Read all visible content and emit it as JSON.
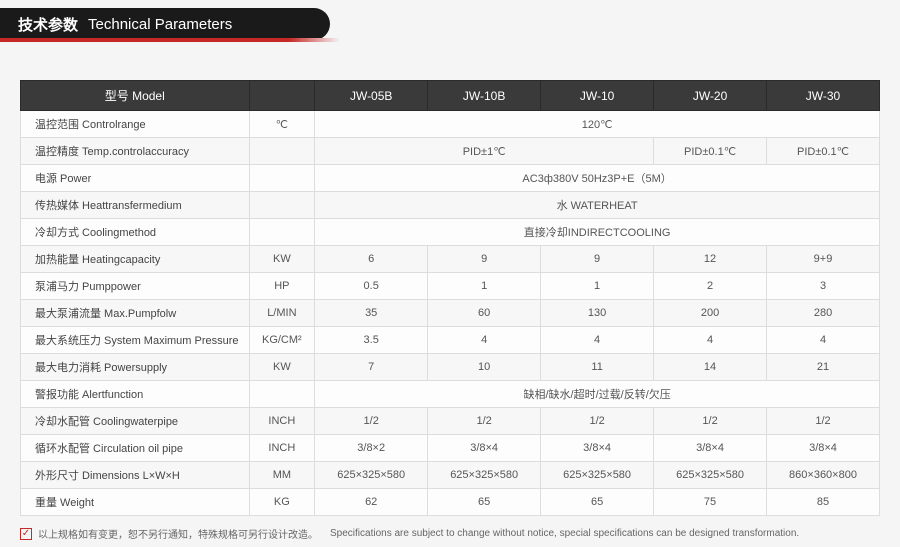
{
  "header": {
    "title_cn": "技术参数",
    "title_en": "Technical Parameters",
    "bg_color": "#1a1a1a",
    "stripe_color": "#c62828"
  },
  "table": {
    "header_bg": "#3a3a3a",
    "border_color": "#dddddd",
    "columns": [
      "型号 Model",
      "",
      "JW-05B",
      "JW-10B",
      "JW-10",
      "JW-20",
      "JW-30"
    ],
    "col_widths": [
      "220px",
      "64px",
      "110px",
      "110px",
      "110px",
      "110px",
      "110px"
    ],
    "rows": [
      {
        "label": "温控范围 Controlrange",
        "unit": "℃",
        "cells": [
          {
            "span": 5,
            "text": "120℃"
          }
        ]
      },
      {
        "label": "温控精度 Temp.controlaccuracy",
        "unit": "",
        "cells": [
          {
            "span": 3,
            "text": "PID±1℃"
          },
          {
            "span": 1,
            "text": "PID±0.1℃"
          },
          {
            "span": 1,
            "text": "PID±0.1℃"
          }
        ]
      },
      {
        "label": "电源 Power",
        "unit": "",
        "cells": [
          {
            "span": 5,
            "text": "AC3ф380V 50Hz3P+E（5M）"
          }
        ]
      },
      {
        "label": "传热媒体 Heattransfermedium",
        "unit": "",
        "cells": [
          {
            "span": 5,
            "text": "水 WATERHEAT"
          }
        ]
      },
      {
        "label": "冷却方式 Coolingmethod",
        "unit": "",
        "cells": [
          {
            "span": 5,
            "text": "直接冷却INDIRECTCOOLING"
          }
        ]
      },
      {
        "label": "加热能量 Heatingcapacity",
        "unit": "KW",
        "cells": [
          {
            "text": "6"
          },
          {
            "text": "9"
          },
          {
            "text": "9"
          },
          {
            "text": "12"
          },
          {
            "text": "9+9"
          }
        ]
      },
      {
        "label": "泵浦马力 Pumppower",
        "unit": "HP",
        "cells": [
          {
            "text": "0.5"
          },
          {
            "text": "1"
          },
          {
            "text": "1"
          },
          {
            "text": "2"
          },
          {
            "text": "3"
          }
        ]
      },
      {
        "label": "最大泵浦流量 Max.Pumpfolw",
        "unit": "L/MIN",
        "cells": [
          {
            "text": "35"
          },
          {
            "text": "60"
          },
          {
            "text": "130"
          },
          {
            "text": "200"
          },
          {
            "text": "280"
          }
        ]
      },
      {
        "label": "最大系统压力 System Maximum Pressure",
        "unit": "KG/CM²",
        "cells": [
          {
            "text": "3.5"
          },
          {
            "text": "4"
          },
          {
            "text": "4"
          },
          {
            "text": "4"
          },
          {
            "text": "4"
          }
        ]
      },
      {
        "label": "最大电力消耗 Powersupply",
        "unit": "KW",
        "cells": [
          {
            "text": "7"
          },
          {
            "text": "10"
          },
          {
            "text": "11"
          },
          {
            "text": "14"
          },
          {
            "text": "21"
          }
        ]
      },
      {
        "label": "警报功能 Alertfunction",
        "unit": "",
        "cells": [
          {
            "span": 5,
            "text": "缺相/缺水/超时/过载/反转/欠压"
          }
        ]
      },
      {
        "label": "冷却水配管 Coolingwaterpipe",
        "unit": "INCH",
        "cells": [
          {
            "text": "1/2"
          },
          {
            "text": "1/2"
          },
          {
            "text": "1/2"
          },
          {
            "text": "1/2"
          },
          {
            "text": "1/2"
          }
        ]
      },
      {
        "label": "循环水配管 Circulation oil pipe",
        "unit": "INCH",
        "cells": [
          {
            "text": "3/8×2"
          },
          {
            "text": "3/8×4"
          },
          {
            "text": "3/8×4"
          },
          {
            "text": "3/8×4"
          },
          {
            "text": "3/8×4"
          }
        ]
      },
      {
        "label": "外形尺寸 Dimensions L×W×H",
        "unit": "MM",
        "cells": [
          {
            "text": "625×325×580"
          },
          {
            "text": "625×325×580"
          },
          {
            "text": "625×325×580"
          },
          {
            "text": "625×325×580"
          },
          {
            "text": "860×360×800"
          }
        ]
      },
      {
        "label": "重量 Weight",
        "unit": "KG",
        "cells": [
          {
            "text": "62"
          },
          {
            "text": "65"
          },
          {
            "text": "65"
          },
          {
            "text": "75"
          },
          {
            "text": "85"
          }
        ]
      }
    ]
  },
  "footnote": {
    "check_icon": "✓",
    "text_cn": "以上规格如有变更，恕不另行通知，特殊规格可另行设计改造。",
    "text_en": "Specifications are subject to change without notice, special specifications can be designed transformation."
  }
}
